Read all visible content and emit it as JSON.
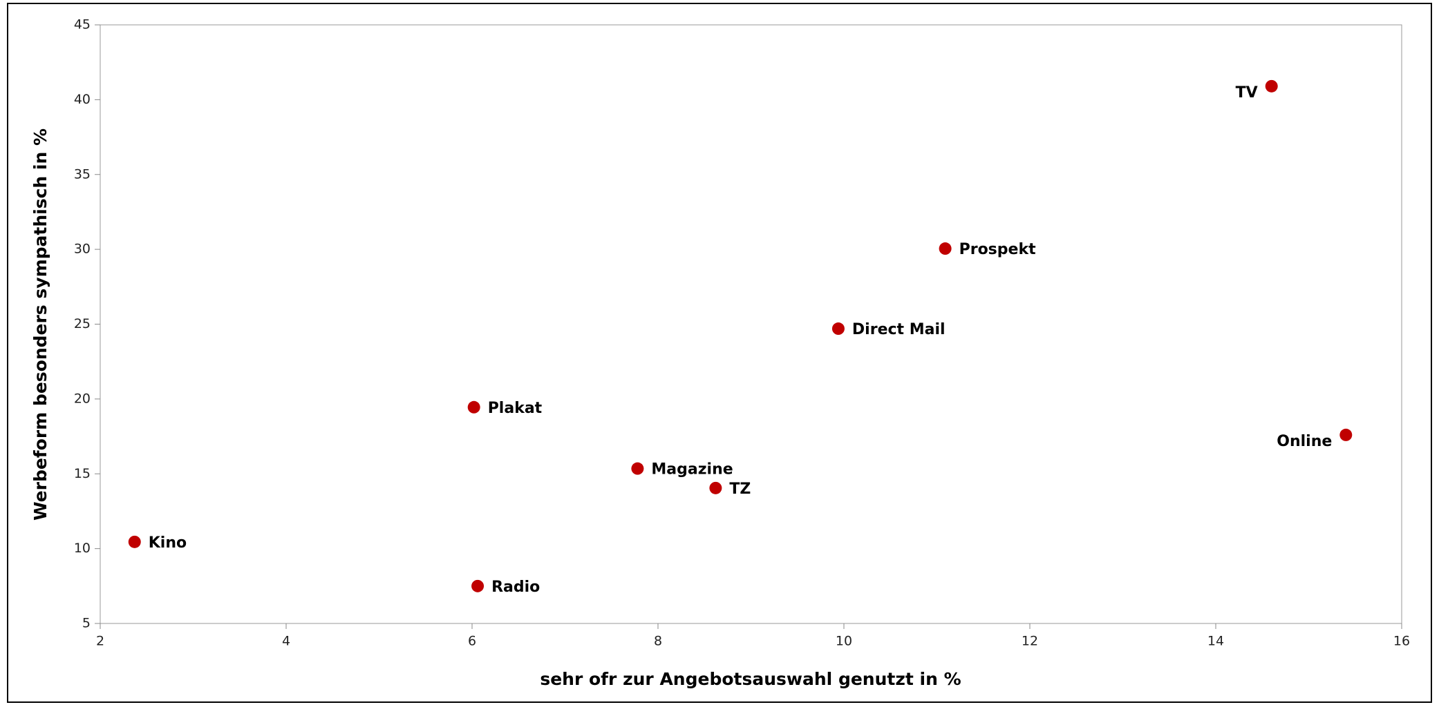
{
  "chart_data": {
    "type": "scatter",
    "xlabel": "sehr ofr zur Angebotsauswahl genutzt in %",
    "ylabel": "Werbeform besonders sympathisch in %",
    "x": [
      14.6,
      11.09,
      9.94,
      6.02,
      15.4,
      7.78,
      8.62,
      2.37,
      6.06
    ],
    "labels": [
      "TV",
      "Prospekt",
      "Direct Mail",
      "Plakat",
      "Online",
      "Magazine",
      "TZ",
      "Kino",
      "Radio"
    ],
    "series": [
      {
        "color": "#c00000",
        "values": [
          40.9,
          30.05,
          24.7,
          19.45,
          17.6,
          15.35,
          14.05,
          10.45,
          7.5
        ]
      }
    ],
    "xlim": [
      2,
      16
    ],
    "xticks": [
      2,
      4,
      6,
      8,
      10,
      12,
      14,
      16
    ],
    "ylim": [
      5,
      45
    ],
    "yticks": [
      5,
      10,
      15,
      20,
      25,
      30,
      35,
      40,
      45
    ],
    "grid": false
  }
}
